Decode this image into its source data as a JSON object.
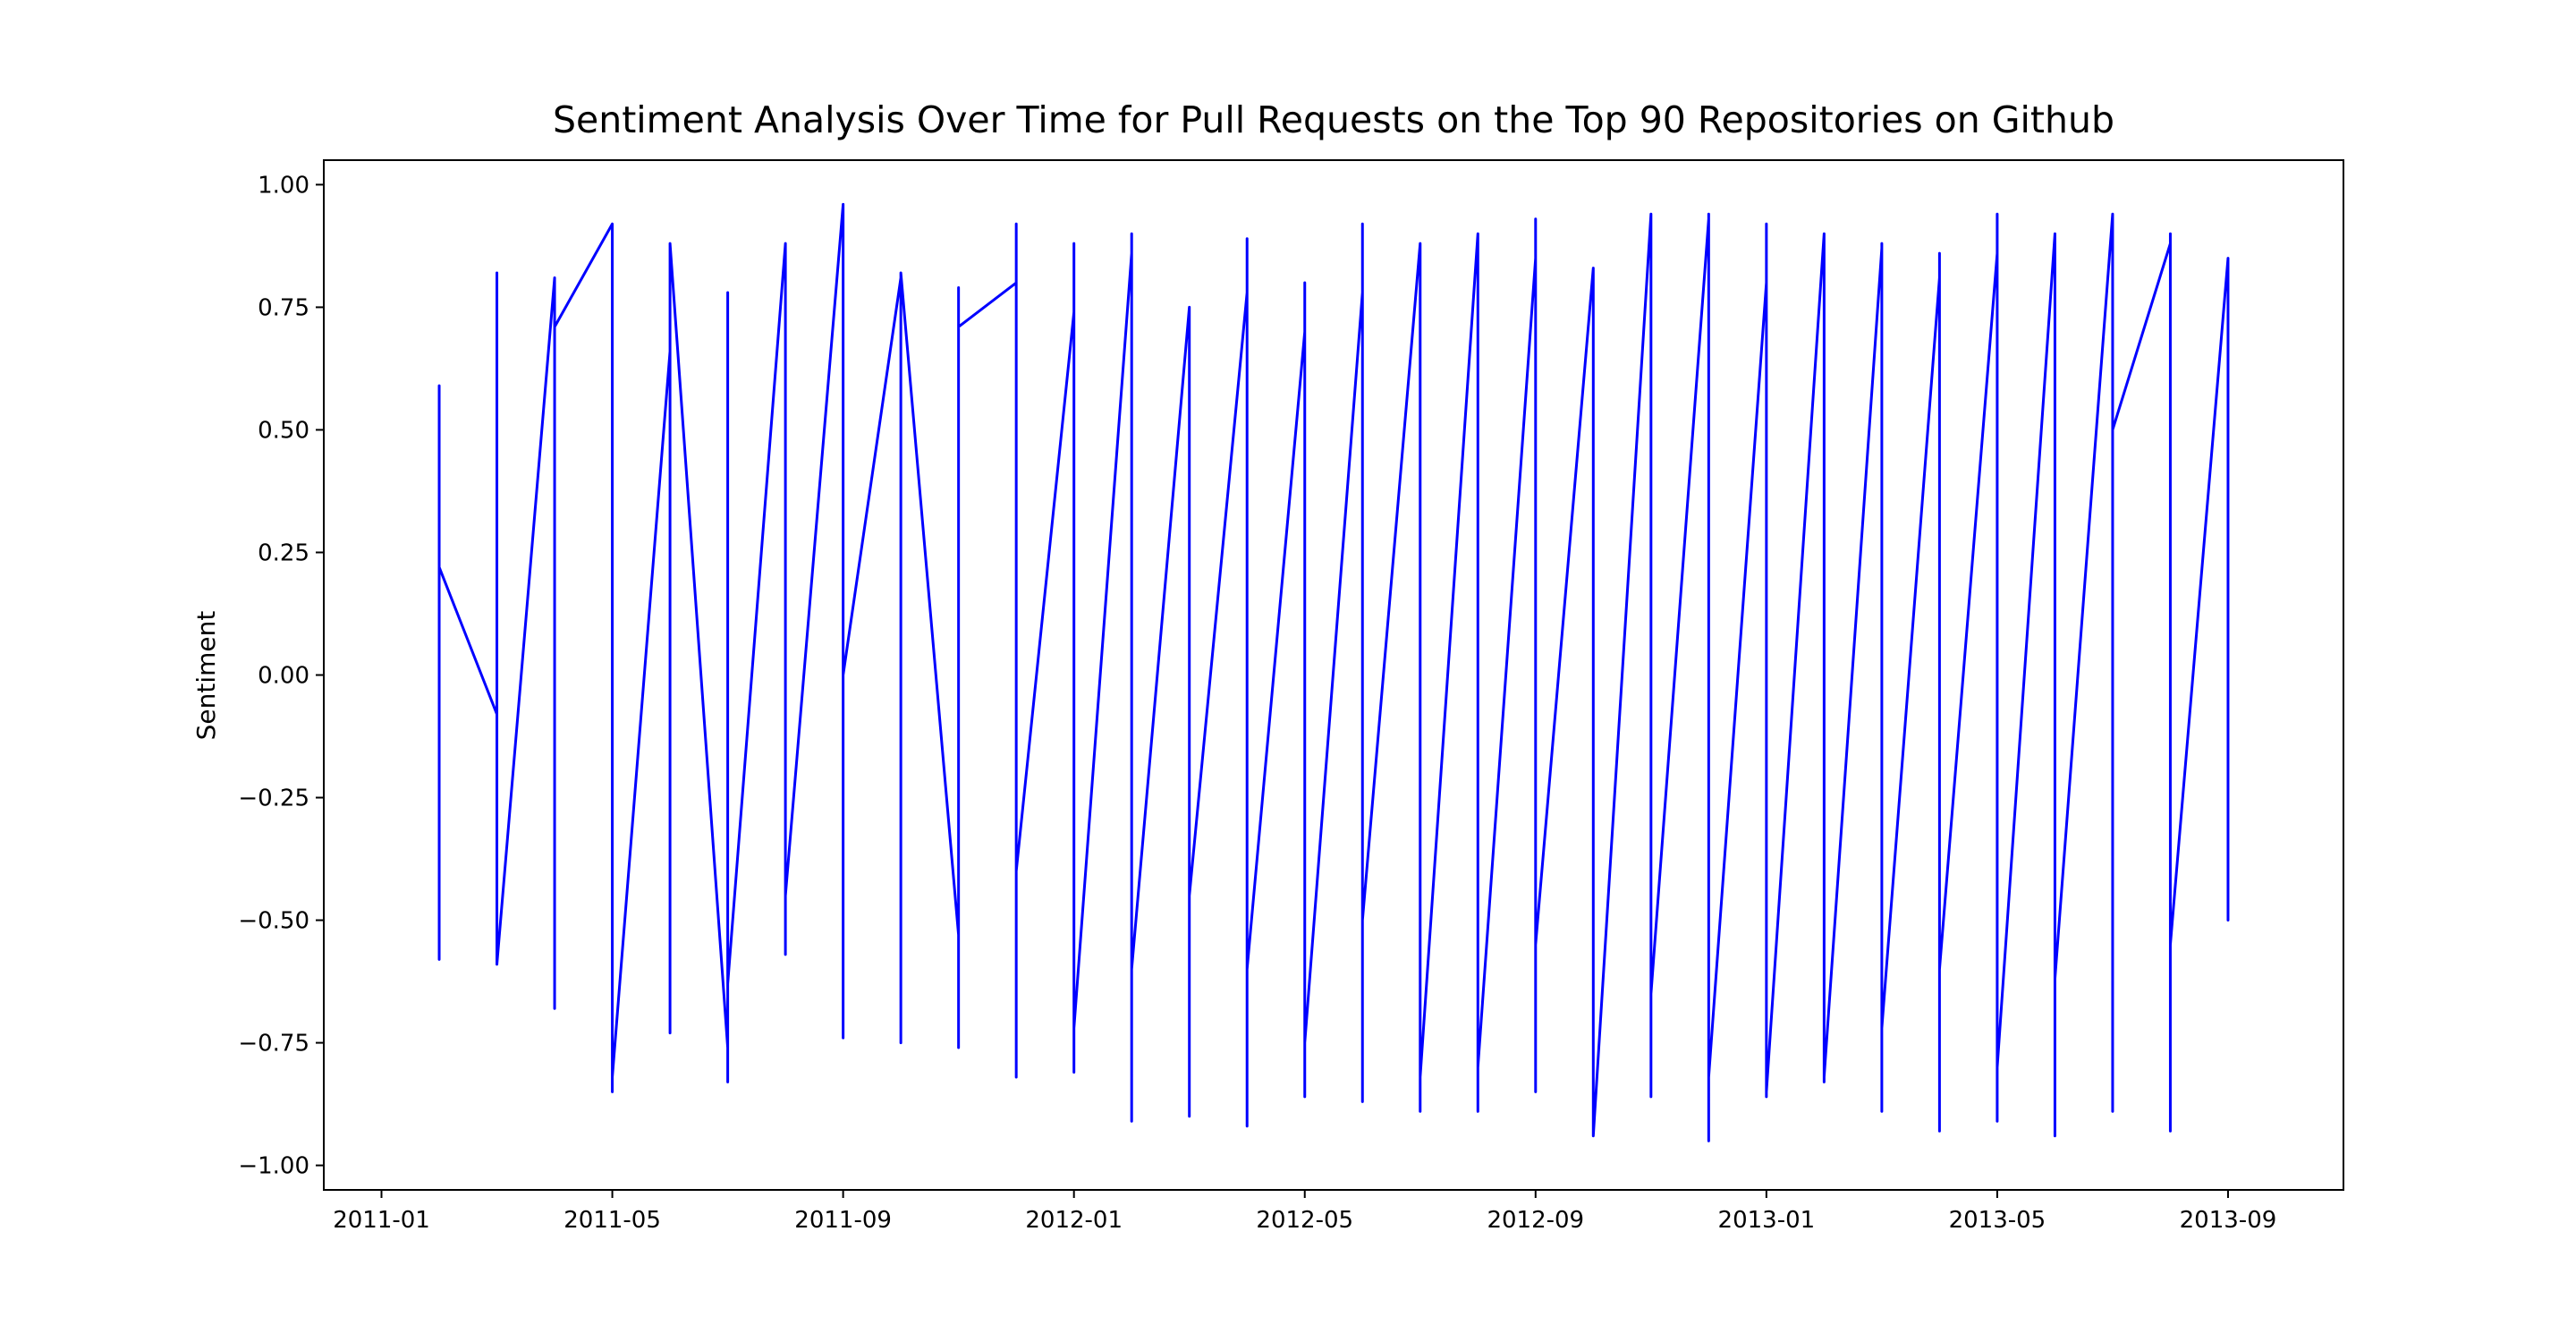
{
  "chart_data": {
    "type": "line",
    "title": "Sentiment Analysis Over Time for Pull Requests on the Top 90 Repositories on Github",
    "y_label": "Sentiment",
    "x": [
      "2011-02",
      "2011-02",
      "2011-02",
      "2011-02",
      "2011-02",
      "2011-03",
      "2011-03",
      "2011-03",
      "2011-03",
      "2011-03",
      "2011-04",
      "2011-04",
      "2011-04",
      "2011-04",
      "2011-04",
      "2011-04",
      "2011-05",
      "2011-05",
      "2011-05",
      "2011-05",
      "2011-05",
      "2011-05",
      "2011-06",
      "2011-06",
      "2011-06",
      "2011-06",
      "2011-06",
      "2011-07",
      "2011-07",
      "2011-07",
      "2011-07",
      "2011-07",
      "2011-07",
      "2011-08",
      "2011-08",
      "2011-08",
      "2011-08",
      "2011-08",
      "2011-09",
      "2011-09",
      "2011-09",
      "2011-09",
      "2011-09",
      "2011-09",
      "2011-10",
      "2011-10",
      "2011-10",
      "2011-10",
      "2011-10",
      "2011-11",
      "2011-11",
      "2011-11",
      "2011-11",
      "2011-11",
      "2011-11",
      "2011-12",
      "2011-12",
      "2011-12",
      "2011-12",
      "2011-12",
      "2011-12",
      "2012-01",
      "2012-01",
      "2012-01",
      "2012-01",
      "2012-01",
      "2012-01",
      "2012-02",
      "2012-02",
      "2012-02",
      "2012-02",
      "2012-02",
      "2012-02",
      "2012-03",
      "2012-03",
      "2012-03",
      "2012-03",
      "2012-03",
      "2012-03",
      "2012-04",
      "2012-04",
      "2012-04",
      "2012-04",
      "2012-04",
      "2012-04",
      "2012-05",
      "2012-05",
      "2012-05",
      "2012-05",
      "2012-05",
      "2012-05",
      "2012-06",
      "2012-06",
      "2012-06",
      "2012-06",
      "2012-06",
      "2012-06",
      "2012-07",
      "2012-07",
      "2012-07",
      "2012-07",
      "2012-07",
      "2012-07",
      "2012-08",
      "2012-08",
      "2012-08",
      "2012-08",
      "2012-08",
      "2012-08",
      "2012-09",
      "2012-09",
      "2012-09",
      "2012-09",
      "2012-09",
      "2012-09",
      "2012-10",
      "2012-10",
      "2012-10",
      "2012-10",
      "2012-10",
      "2012-10",
      "2012-11",
      "2012-11",
      "2012-11",
      "2012-11",
      "2012-11",
      "2012-11",
      "2012-12",
      "2012-12",
      "2012-12",
      "2012-12",
      "2012-12",
      "2012-12",
      "2013-01",
      "2013-01",
      "2013-01",
      "2013-01",
      "2013-01",
      "2013-01",
      "2013-02",
      "2013-02",
      "2013-02",
      "2013-02",
      "2013-02",
      "2013-02",
      "2013-03",
      "2013-03",
      "2013-03",
      "2013-03",
      "2013-03",
      "2013-03",
      "2013-04",
      "2013-04",
      "2013-04",
      "2013-04",
      "2013-04",
      "2013-04",
      "2013-05",
      "2013-05",
      "2013-05",
      "2013-05",
      "2013-05",
      "2013-05",
      "2013-06",
      "2013-06",
      "2013-06",
      "2013-06",
      "2013-06",
      "2013-06",
      "2013-07",
      "2013-07",
      "2013-07",
      "2013-07",
      "2013-07",
      "2013-07",
      "2013-07",
      "2013-08",
      "2013-08",
      "2013-08",
      "2013-08",
      "2013-08",
      "2013-08",
      "2013-09",
      "2013-09",
      "2013-09",
      "2013-09",
      "2013-09",
      "2013-09"
    ],
    "series": [
      {
        "name": "Sentiment",
        "color": "#0000ff",
        "values": [
          0.31,
          0,
          0.59,
          -0.58,
          0.22,
          -0.08,
          0.82,
          -0.3,
          0.7,
          -0.59,
          0.81,
          -0.68,
          0.01,
          0.62,
          -0.65,
          0.71,
          0.92,
          -0.85,
          0.8,
          -0.25,
          0.4,
          -0.82,
          0.66,
          -0.73,
          0.84,
          -0.62,
          0.88,
          -0.76,
          0.78,
          -0.83,
          0.69,
          0.3,
          -0.63,
          0.88,
          -0.57,
          0.69,
          0.3,
          -0.45,
          0.96,
          -0.74,
          0.9,
          -0.66,
          0.88,
          0,
          0.81,
          -0.75,
          0.68,
          -0.72,
          0.82,
          -0.53,
          0.79,
          -0.76,
          0.6,
          -0.35,
          0.71,
          0.8,
          -0.79,
          0.66,
          -0.82,
          0.92,
          -0.4,
          0.74,
          -0.81,
          0.68,
          -0.37,
          0.88,
          -0.72,
          0.86,
          -0.91,
          0.78,
          -0.82,
          0.9,
          -0.6,
          0.75,
          -0.9,
          0.65,
          -0.8,
          0.71,
          -0.45,
          0.78,
          -0.92,
          0.72,
          -0.75,
          0.89,
          -0.6,
          0.7,
          -0.86,
          0.8,
          -0.54,
          0.6,
          -0.75,
          0.78,
          -0.6,
          0.92,
          -0.87,
          0.7,
          -0.5,
          0.88,
          -0.89,
          0.82,
          -0.63,
          0.75,
          -0.82,
          0.9,
          -0.89,
          0.86,
          -0.73,
          0.7,
          -0.8,
          0.85,
          -0.85,
          0.76,
          -0.71,
          0.93,
          -0.55,
          0.83,
          -0.82,
          0.7,
          -0.76,
          0.8,
          -0.94,
          0.94,
          -0.86,
          0.9,
          -0.7,
          0.86,
          -0.65,
          0.93,
          -0.87,
          0.82,
          -0.95,
          0.94,
          -0.82,
          0.8,
          -0.86,
          0.92,
          -0.7,
          0.88,
          -0.85,
          0.9,
          -0.83,
          0.88,
          -0.75,
          0.84,
          -0.82,
          0.87,
          -0.89,
          0.8,
          -0.74,
          0.88,
          -0.72,
          0.81,
          -0.91,
          0.86,
          -0.93,
          0.75,
          -0.6,
          0.86,
          -0.91,
          0.9,
          -0.87,
          0.94,
          -0.8,
          0.9,
          -0.94,
          0.84,
          -0.9,
          0.8,
          -0.62,
          0.94,
          -0.89,
          0.85,
          -0.37,
          0.81,
          -0.22,
          0.5,
          0.88,
          -0.93,
          0.8,
          -0.76,
          0.9,
          -0.55,
          0.85,
          -0.5,
          0.81,
          -0.22,
          0.5,
          0
        ]
      }
    ],
    "xlim": [
      "2010-12",
      "2013-11"
    ],
    "xticks": [
      "2011-01",
      "2011-05",
      "2011-09",
      "2012-01",
      "2012-05",
      "2012-09",
      "2013-01",
      "2013-05",
      "2013-09"
    ],
    "ylim": [
      -1.05,
      1.05
    ],
    "yticks": [
      {
        "value": -1,
        "label": "−1.00"
      },
      {
        "value": -0.75,
        "label": "−0.75"
      },
      {
        "value": -0.5,
        "label": "−0.50"
      },
      {
        "value": -0.25,
        "label": "−0.25"
      },
      {
        "value": 0,
        "label": "0.00"
      },
      {
        "value": 0.25,
        "label": "0.25"
      },
      {
        "value": 0.5,
        "label": "0.50"
      },
      {
        "value": 0.75,
        "label": "0.75"
      },
      {
        "value": 1,
        "label": "1.00"
      }
    ]
  }
}
